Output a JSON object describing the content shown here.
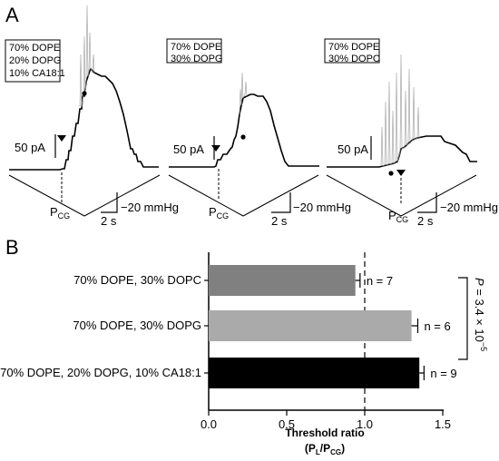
{
  "panel_a": {
    "letter": "A",
    "current_scale": "50 pA",
    "time_scale": "2 s",
    "pressure_scale": "−20 mmHg",
    "threshold_marker": "P",
    "threshold_marker_sub": "CG",
    "traces": [
      {
        "lines": [
          "70% DOPE",
          "20% DOPG",
          "10% CA18:1"
        ]
      },
      {
        "lines": [
          "70% DOPE",
          "30% DOPG"
        ]
      },
      {
        "lines": [
          "70% DOPE",
          "30% DOPC"
        ]
      }
    ]
  },
  "panel_b": {
    "letter": "B"
  },
  "significance": {
    "prefix": "P",
    "text": " = 3.4 × 10",
    "exponent": "−5"
  },
  "chart_data": {
    "type": "bar",
    "orientation": "horizontal",
    "categories": [
      "70% DOPE, 30% DOPC",
      "70% DOPE, 30% DOPG",
      "70% DOPE, 20% DOPG, 10% CA18:1"
    ],
    "values": [
      0.94,
      1.3,
      1.35
    ],
    "errors": [
      0.03,
      0.04,
      0.03
    ],
    "n_labels": [
      "n = 7",
      "n = 6",
      "n = 9"
    ],
    "colors": [
      "#808080",
      "#aaaaaa",
      "#000000"
    ],
    "xlabel": "Threshold ratio",
    "xlabel_sub": "(P",
    "xlabel_sub_L": "L",
    "xlabel_sub_mid": "/P",
    "xlabel_sub_CG": "CG",
    "xlabel_sub_end": ")",
    "xlim": [
      0.0,
      1.5
    ],
    "xticks": [
      "0.0",
      "0.5",
      "1.0",
      "1.5"
    ],
    "reference_line": 1.0
  }
}
